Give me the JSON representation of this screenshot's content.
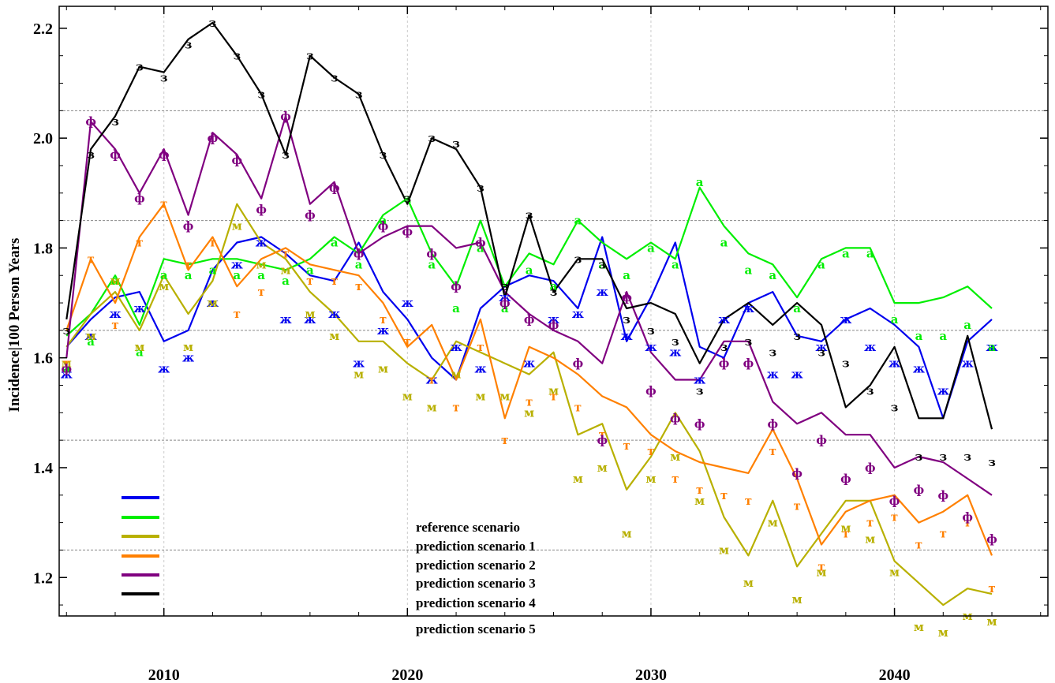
{
  "chart_data": {
    "type": "line",
    "title": "",
    "xlabel": "",
    "ylabel": "Incidence|100 Person Years",
    "xlim": [
      2005.7,
      2046.3
    ],
    "ylim": [
      1.13,
      2.24
    ],
    "xticks": [
      2010,
      2020,
      2030,
      2040
    ],
    "yticks": [
      1.2,
      1.4,
      1.6,
      1.8,
      2.0,
      2.2
    ],
    "y_gridlines": [
      1.25,
      1.45,
      1.65,
      1.85,
      2.05
    ],
    "grid": true,
    "legend_position": "bottom-left",
    "x": [
      2006,
      2007,
      2008,
      2009,
      2010,
      2011,
      2012,
      2013,
      2014,
      2015,
      2016,
      2017,
      2018,
      2019,
      2020,
      2021,
      2022,
      2023,
      2024,
      2025,
      2026,
      2027,
      2028,
      2029,
      2030,
      2031,
      2032,
      2033,
      2034,
      2035,
      2036,
      2037,
      2038,
      2039,
      2040,
      2041,
      2042,
      2043,
      2044
    ],
    "series": [
      {
        "name": "reference scenario",
        "color": "#0000ee",
        "marker": "ж",
        "values": [
          1.62,
          1.67,
          1.71,
          1.72,
          1.63,
          1.65,
          1.76,
          1.81,
          1.82,
          1.79,
          1.75,
          1.74,
          1.81,
          1.72,
          1.67,
          1.6,
          1.56,
          1.69,
          1.73,
          1.75,
          1.74,
          1.69,
          1.82,
          1.63,
          1.71,
          1.81,
          1.62,
          1.6,
          1.7,
          1.72,
          1.64,
          1.63,
          1.67,
          1.69,
          1.66,
          1.62,
          1.49,
          1.63,
          1.67
        ],
        "points": [
          1.57,
          1.64,
          1.68,
          1.69,
          1.58,
          1.6,
          1.7,
          1.77,
          1.81,
          1.67,
          1.67,
          1.68,
          1.59,
          1.65,
          1.7,
          1.56,
          1.62,
          1.58,
          1.71,
          1.59,
          1.67,
          1.68,
          1.72,
          1.64,
          1.62,
          1.61,
          1.56,
          1.67,
          1.69,
          1.57,
          1.57,
          1.62,
          1.67,
          1.62,
          1.59,
          1.58,
          1.54,
          1.59,
          1.62
        ]
      },
      {
        "name": "prediction scenario 1",
        "color": "#00ee00",
        "marker": "а",
        "values": [
          1.64,
          1.68,
          1.75,
          1.66,
          1.78,
          1.77,
          1.78,
          1.78,
          1.77,
          1.76,
          1.78,
          1.82,
          1.79,
          1.86,
          1.89,
          1.79,
          1.73,
          1.85,
          1.73,
          1.79,
          1.77,
          1.85,
          1.81,
          1.78,
          1.81,
          1.78,
          1.91,
          1.84,
          1.79,
          1.77,
          1.71,
          1.78,
          1.8,
          1.8,
          1.7,
          1.7,
          1.71,
          1.73,
          1.69
        ],
        "points": [
          1.58,
          1.63,
          1.74,
          1.61,
          1.75,
          1.75,
          1.76,
          1.75,
          1.75,
          1.74,
          1.76,
          1.81,
          1.77,
          1.85,
          1.89,
          1.77,
          1.69,
          1.8,
          1.69,
          1.76,
          1.73,
          1.85,
          1.77,
          1.75,
          1.8,
          1.77,
          1.92,
          1.81,
          1.76,
          1.75,
          1.69,
          1.77,
          1.79,
          1.79,
          1.67,
          1.64,
          1.64,
          1.66,
          1.62
        ]
      },
      {
        "name": "prediction scenario 2",
        "color": "#b8b000",
        "marker": "м",
        "values": [
          1.62,
          1.68,
          1.72,
          1.65,
          1.75,
          1.68,
          1.74,
          1.88,
          1.81,
          1.78,
          1.72,
          1.68,
          1.63,
          1.63,
          1.59,
          1.56,
          1.63,
          1.61,
          1.59,
          1.57,
          1.61,
          1.46,
          1.48,
          1.36,
          1.42,
          1.5,
          1.43,
          1.31,
          1.24,
          1.34,
          1.22,
          1.28,
          1.34,
          1.34,
          1.23,
          1.19,
          1.15,
          1.18,
          1.17
        ],
        "points": [
          1.59,
          1.64,
          1.74,
          1.62,
          1.73,
          1.62,
          1.7,
          1.84,
          1.77,
          1.76,
          1.68,
          1.64,
          1.57,
          1.58,
          1.53,
          1.51,
          1.57,
          1.53,
          1.53,
          1.5,
          1.54,
          1.38,
          1.4,
          1.28,
          1.38,
          1.42,
          1.34,
          1.25,
          1.19,
          1.3,
          1.16,
          1.21,
          1.29,
          1.27,
          1.21,
          1.11,
          1.1,
          1.13,
          1.12
        ]
      },
      {
        "name": "prediction scenario 3",
        "color": "#ff8000",
        "marker": "т",
        "values": [
          1.65,
          1.78,
          1.7,
          1.82,
          1.88,
          1.76,
          1.82,
          1.73,
          1.78,
          1.8,
          1.77,
          1.76,
          1.75,
          1.7,
          1.62,
          1.66,
          1.56,
          1.67,
          1.49,
          1.62,
          1.6,
          1.57,
          1.53,
          1.51,
          1.46,
          1.43,
          1.41,
          1.4,
          1.39,
          1.47,
          1.38,
          1.26,
          1.32,
          1.34,
          1.35,
          1.3,
          1.32,
          1.35,
          1.24
        ],
        "points": [
          1.59,
          1.78,
          1.66,
          1.81,
          1.88,
          1.77,
          1.81,
          1.68,
          1.72,
          1.79,
          1.74,
          1.74,
          1.73,
          1.67,
          1.63,
          1.56,
          1.51,
          1.62,
          1.45,
          1.52,
          1.53,
          1.51,
          1.46,
          1.44,
          1.43,
          1.38,
          1.36,
          1.35,
          1.34,
          1.43,
          1.33,
          1.22,
          1.28,
          1.3,
          1.31,
          1.26,
          1.28,
          1.3,
          1.18
        ]
      },
      {
        "name": "prediction scenario 4",
        "color": "#800080",
        "marker": "ф",
        "values": [
          1.6,
          2.03,
          1.98,
          1.9,
          1.98,
          1.86,
          2.01,
          1.97,
          1.89,
          2.04,
          1.88,
          1.92,
          1.79,
          1.82,
          1.84,
          1.84,
          1.8,
          1.81,
          1.72,
          1.68,
          1.65,
          1.63,
          1.59,
          1.72,
          1.61,
          1.56,
          1.56,
          1.63,
          1.63,
          1.52,
          1.48,
          1.5,
          1.46,
          1.46,
          1.4,
          1.42,
          1.41,
          1.38,
          1.35
        ],
        "points": [
          1.58,
          2.03,
          1.97,
          1.89,
          1.97,
          1.84,
          2.0,
          1.96,
          1.87,
          2.04,
          1.86,
          1.91,
          1.79,
          1.84,
          1.83,
          1.79,
          1.73,
          1.81,
          1.7,
          1.67,
          1.66,
          1.59,
          1.45,
          1.71,
          1.54,
          1.49,
          1.48,
          1.59,
          1.59,
          1.48,
          1.39,
          1.45,
          1.38,
          1.4,
          1.34,
          1.36,
          1.35,
          1.31,
          1.27
        ]
      },
      {
        "name": "prediction scenario 5",
        "color": "#000000",
        "marker": "з",
        "values": [
          1.67,
          1.98,
          2.04,
          2.13,
          2.12,
          2.18,
          2.21,
          2.15,
          2.08,
          1.97,
          2.15,
          2.11,
          2.08,
          1.97,
          1.88,
          2.0,
          1.98,
          1.91,
          1.71,
          1.86,
          1.72,
          1.78,
          1.78,
          1.69,
          1.7,
          1.68,
          1.59,
          1.67,
          1.7,
          1.66,
          1.7,
          1.66,
          1.51,
          1.55,
          1.62,
          1.49,
          1.49,
          1.64,
          1.47
        ],
        "points": [
          1.65,
          1.97,
          2.03,
          2.13,
          2.11,
          2.17,
          2.21,
          2.15,
          2.08,
          1.97,
          2.15,
          2.11,
          2.08,
          1.97,
          1.89,
          2.0,
          1.99,
          1.91,
          1.73,
          1.86,
          1.72,
          1.78,
          1.77,
          1.67,
          1.65,
          1.63,
          1.54,
          1.62,
          1.63,
          1.61,
          1.64,
          1.61,
          1.59,
          1.54,
          1.51,
          1.42,
          1.42,
          1.42,
          1.41
        ]
      }
    ]
  }
}
